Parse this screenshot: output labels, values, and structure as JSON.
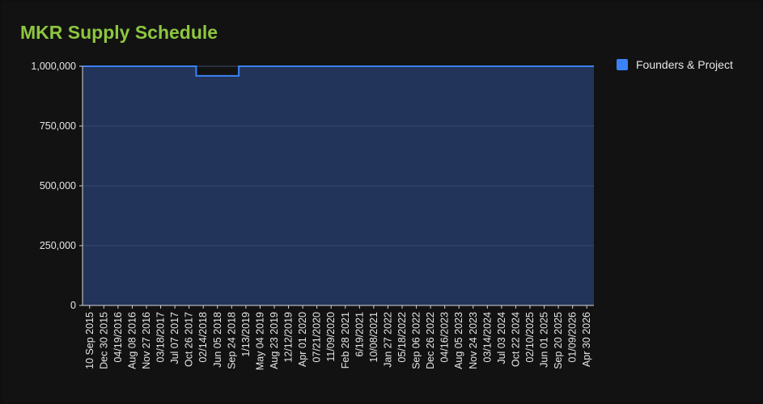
{
  "chart_data": {
    "type": "area",
    "title": "MKR Supply Schedule",
    "xlabel": "",
    "ylabel": "",
    "ylim": [
      0,
      1000000
    ],
    "yticks": [
      0,
      250000,
      500000,
      750000,
      1000000
    ],
    "ytick_labels": [
      "0",
      "250,000",
      "500,000",
      "750,000",
      "1,000,000"
    ],
    "grid": true,
    "legend_position": "right",
    "categories": [
      "10 Sep 2015",
      "Dec 30 2015",
      "04/19/2016",
      "Aug 08 2016",
      "Nov 27 2016",
      "03/18/2017",
      "Jul 07 2017",
      "Oct 26 2017",
      "02/14/2018",
      "Jun 05 2018",
      "Sep 24 2018",
      "1/13/2019",
      "May 04 2019",
      "Aug 23 2019",
      "12/12/2019",
      "Apr 01 2020",
      "07/21/2020",
      "11/09/2020",
      "Feb 28 2021",
      "6/19/2021",
      "10/08/2021",
      "Jan 27 2022",
      "05/18/2022",
      "Sep 06 2022",
      "Dec 26 2022",
      "04/16/2023",
      "Aug 05 2023",
      "Nov 24 2023",
      "03/14/2024",
      "Jul 03 2024",
      "Oct 22 2024",
      "02/10/2025",
      "Jun 01 2025",
      "Sep 20 2025",
      "01/09/2026",
      "Apr 30 2026"
    ],
    "series": [
      {
        "name": "Founders & Project",
        "color": "#3b82f6",
        "fill": "#223459",
        "values": [
          1000000,
          1000000,
          1000000,
          1000000,
          1000000,
          1000000,
          1000000,
          1000000,
          960000,
          960000,
          960000,
          1000000,
          1000000,
          1000000,
          1000000,
          1000000,
          1000000,
          1000000,
          1000000,
          1000000,
          1000000,
          1000000,
          1000000,
          1000000,
          1000000,
          1000000,
          1000000,
          1000000,
          1000000,
          1000000,
          1000000,
          1000000,
          1000000,
          1000000,
          1000000,
          1000000
        ]
      }
    ]
  },
  "colors": {
    "background": "#121212",
    "title": "#8dc63f",
    "grid": "#3a4b6b",
    "text": "#e6e6e6"
  }
}
